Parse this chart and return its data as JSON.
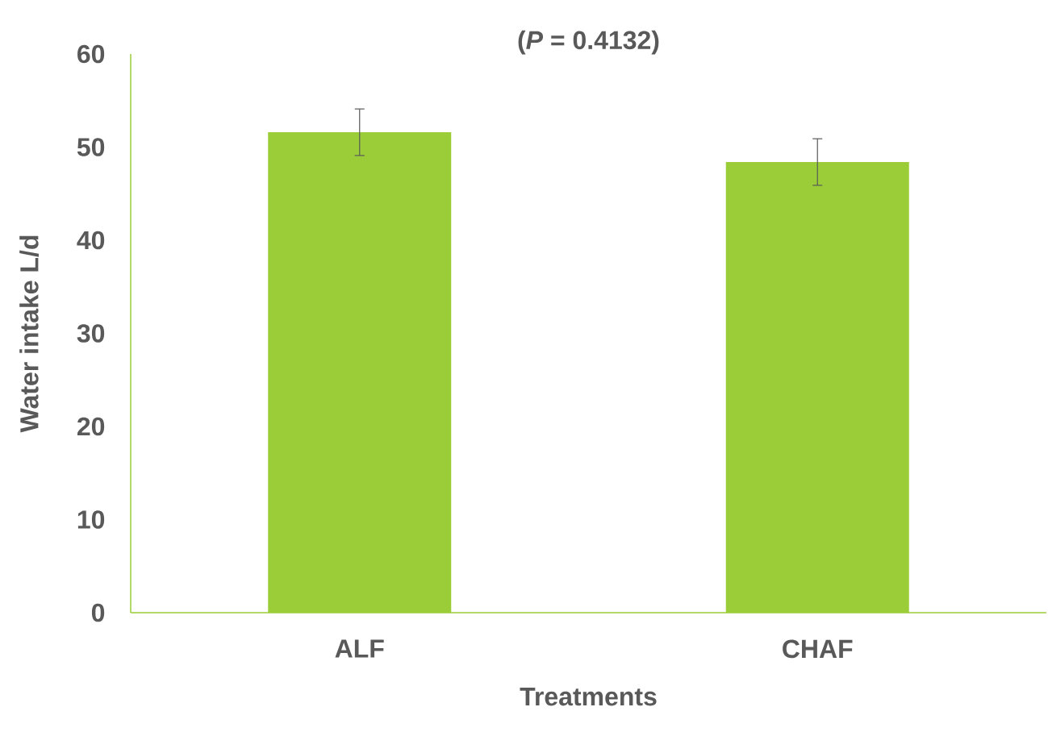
{
  "chart_data": {
    "type": "bar",
    "title": "(*P* = 0.4132)",
    "xlabel": "Treatments",
    "ylabel": "Water intake L/d",
    "categories": [
      "ALF",
      "CHAF"
    ],
    "values": [
      51.6,
      48.4
    ],
    "errors": [
      2.5,
      2.5
    ],
    "color": "#9acd37",
    "ylim": [
      0,
      60
    ],
    "yticks": [
      0,
      10,
      20,
      30,
      40,
      50,
      60
    ]
  }
}
